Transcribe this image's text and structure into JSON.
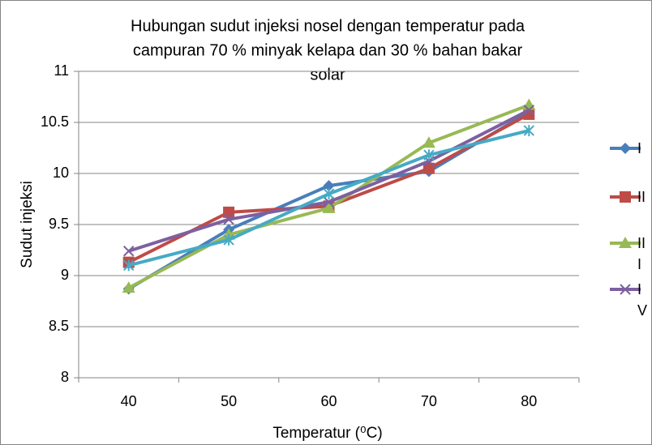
{
  "chart_data": {
    "type": "line",
    "title": [
      "Hubungan sudut injeksi nosel dengan temperatur pada",
      "campuran 70 % minyak kelapa dan 30 % bahan bakar",
      "solar"
    ],
    "x_label": "Temperatur (⁰C)",
    "y_label": "Sudut injeksi",
    "categories": [
      "40",
      "50",
      "60",
      "70",
      "80"
    ],
    "series": [
      {
        "name": "I",
        "color": "#4a7ebb",
        "marker": "diamond",
        "values": [
          8.87,
          9.45,
          9.88,
          10.02,
          10.6
        ]
      },
      {
        "name": "II",
        "color": "#be4b48",
        "marker": "square",
        "values": [
          9.13,
          9.62,
          9.68,
          10.05,
          10.58
        ]
      },
      {
        "name": "III",
        "color": "#98b954",
        "marker": "triangle",
        "values": [
          8.88,
          9.4,
          9.66,
          10.3,
          10.67
        ]
      },
      {
        "name": "IV",
        "color": "#7d60a0",
        "marker": "x",
        "values": [
          9.24,
          9.55,
          9.72,
          10.12,
          10.62
        ]
      },
      {
        "color": "#46aac5",
        "marker": "star",
        "values": [
          9.1,
          9.35,
          9.8,
          10.18,
          10.42
        ]
      }
    ],
    "ylim": [
      8,
      11
    ],
    "yticks": [
      8,
      8.5,
      9,
      9.5,
      10,
      10.5,
      11
    ],
    "grid": true,
    "legend": "right"
  }
}
